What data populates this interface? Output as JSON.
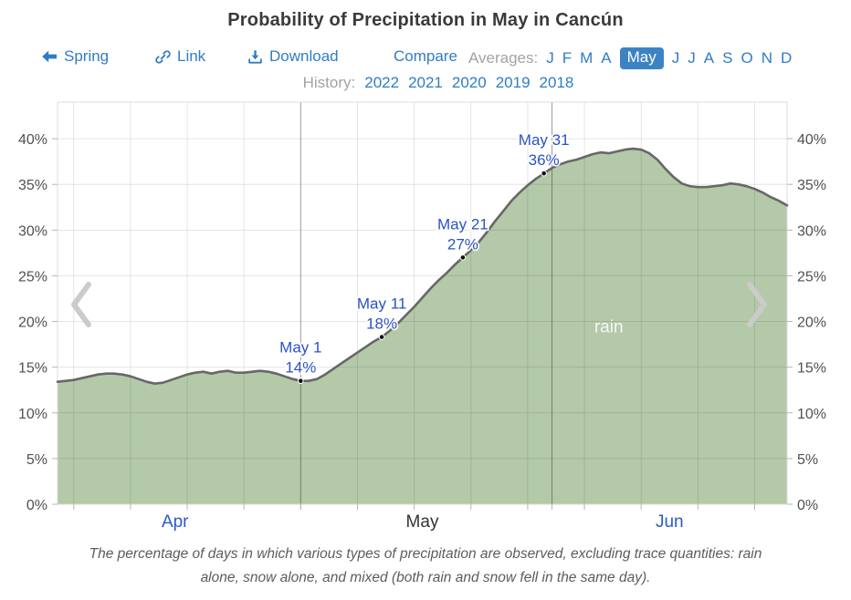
{
  "header": {
    "title": "Probability of Precipitation in May in Cancún",
    "nav": {
      "back_label": "Spring",
      "link_label": "Link",
      "download_label": "Download",
      "compare_label": "Compare"
    },
    "averages": {
      "label": "Averages:",
      "months": [
        "J",
        "F",
        "M",
        "A",
        "May",
        "J",
        "J",
        "A",
        "S",
        "O",
        "N",
        "D"
      ],
      "selected": "May"
    },
    "history": {
      "label": "History:",
      "years": [
        "2022",
        "2021",
        "2020",
        "2019",
        "2018"
      ]
    }
  },
  "chart_data": {
    "type": "area",
    "title": "Probability of Precipitation in May in Cancún",
    "series_name": "rain",
    "x_unit": "days from Apr 1",
    "x_range_days": [
      0,
      90
    ],
    "ylim": [
      0,
      44
    ],
    "yticks": [
      0,
      5,
      10,
      15,
      20,
      25,
      30,
      35,
      40
    ],
    "ytick_suffix": "%",
    "grid": true,
    "x_month_ticks": [
      {
        "label": "Apr",
        "day": 14.5,
        "link": true
      },
      {
        "label": "May",
        "day": 45,
        "link": false
      },
      {
        "label": "Jun",
        "day": 75.5,
        "link": true
      }
    ],
    "month_boundaries_days": [
      30,
      61
    ],
    "week_gridlines_days": [
      2,
      9,
      16,
      23,
      30,
      37,
      44,
      51,
      58,
      65,
      72,
      79,
      86
    ],
    "points": [
      [
        0,
        13.4
      ],
      [
        1,
        13.5
      ],
      [
        2,
        13.6
      ],
      [
        3,
        13.8
      ],
      [
        4,
        14.0
      ],
      [
        5,
        14.2
      ],
      [
        6,
        14.3
      ],
      [
        7,
        14.3
      ],
      [
        8,
        14.2
      ],
      [
        9,
        14.0
      ],
      [
        10,
        13.7
      ],
      [
        11,
        13.4
      ],
      [
        12,
        13.2
      ],
      [
        13,
        13.3
      ],
      [
        14,
        13.6
      ],
      [
        15,
        13.9
      ],
      [
        16,
        14.2
      ],
      [
        17,
        14.4
      ],
      [
        18,
        14.5
      ],
      [
        19,
        14.3
      ],
      [
        20,
        14.5
      ],
      [
        21,
        14.6
      ],
      [
        22,
        14.4
      ],
      [
        23,
        14.4
      ],
      [
        24,
        14.5
      ],
      [
        25,
        14.6
      ],
      [
        26,
        14.5
      ],
      [
        27,
        14.3
      ],
      [
        28,
        14.0
      ],
      [
        29,
        13.7
      ],
      [
        30,
        13.5
      ],
      [
        31,
        13.5
      ],
      [
        32,
        13.7
      ],
      [
        33,
        14.2
      ],
      [
        34,
        14.8
      ],
      [
        35,
        15.4
      ],
      [
        36,
        16.0
      ],
      [
        37,
        16.6
      ],
      [
        38,
        17.2
      ],
      [
        39,
        17.8
      ],
      [
        40,
        18.3
      ],
      [
        41,
        19.0
      ],
      [
        42,
        19.8
      ],
      [
        43,
        20.7
      ],
      [
        44,
        21.6
      ],
      [
        45,
        22.6
      ],
      [
        46,
        23.6
      ],
      [
        47,
        24.5
      ],
      [
        48,
        25.3
      ],
      [
        49,
        26.2
      ],
      [
        50,
        27.0
      ],
      [
        51,
        27.8
      ],
      [
        52,
        28.7
      ],
      [
        53,
        29.8
      ],
      [
        54,
        31.0
      ],
      [
        55,
        32.1
      ],
      [
        56,
        33.2
      ],
      [
        57,
        34.1
      ],
      [
        58,
        34.9
      ],
      [
        59,
        35.6
      ],
      [
        60,
        36.2
      ],
      [
        61,
        36.8
      ],
      [
        62,
        37.2
      ],
      [
        63,
        37.5
      ],
      [
        64,
        37.7
      ],
      [
        65,
        38.0
      ],
      [
        66,
        38.3
      ],
      [
        67,
        38.5
      ],
      [
        68,
        38.4
      ],
      [
        69,
        38.6
      ],
      [
        70,
        38.8
      ],
      [
        71,
        38.9
      ],
      [
        72,
        38.8
      ],
      [
        73,
        38.4
      ],
      [
        74,
        37.7
      ],
      [
        75,
        36.7
      ],
      [
        76,
        35.8
      ],
      [
        77,
        35.1
      ],
      [
        78,
        34.8
      ],
      [
        79,
        34.7
      ],
      [
        80,
        34.7
      ],
      [
        81,
        34.8
      ],
      [
        82,
        34.9
      ],
      [
        83,
        35.1
      ],
      [
        84,
        35.0
      ],
      [
        85,
        34.8
      ],
      [
        86,
        34.5
      ],
      [
        87,
        34.1
      ],
      [
        88,
        33.6
      ],
      [
        89,
        33.2
      ],
      [
        90,
        32.7
      ]
    ],
    "annotations": [
      {
        "label": "May 1",
        "value": "14%",
        "day": 30,
        "pct": 13.5
      },
      {
        "label": "May 11",
        "value": "18%",
        "day": 40,
        "pct": 18.3
      },
      {
        "label": "May 21",
        "value": "27%",
        "day": 50,
        "pct": 27.0
      },
      {
        "label": "May 31",
        "value": "36%",
        "day": 60,
        "pct": 36.2
      }
    ],
    "area_label": {
      "text": "rain",
      "day": 68,
      "pct": 18.8
    },
    "colors": {
      "fill": "#b3c9a8",
      "line": "#676767",
      "annotation": "#2b52c8",
      "link": "#2f7dc3",
      "axis_text": "#515151",
      "month_link": "#2b5ac8",
      "chip_bg": "#3c83c6"
    }
  },
  "caption": {
    "line1": "The percentage of days in which various types of precipitation are observed, excluding trace quantities: rain",
    "line2": "alone, snow alone, and mixed (both rain and snow fell in the same day)."
  }
}
